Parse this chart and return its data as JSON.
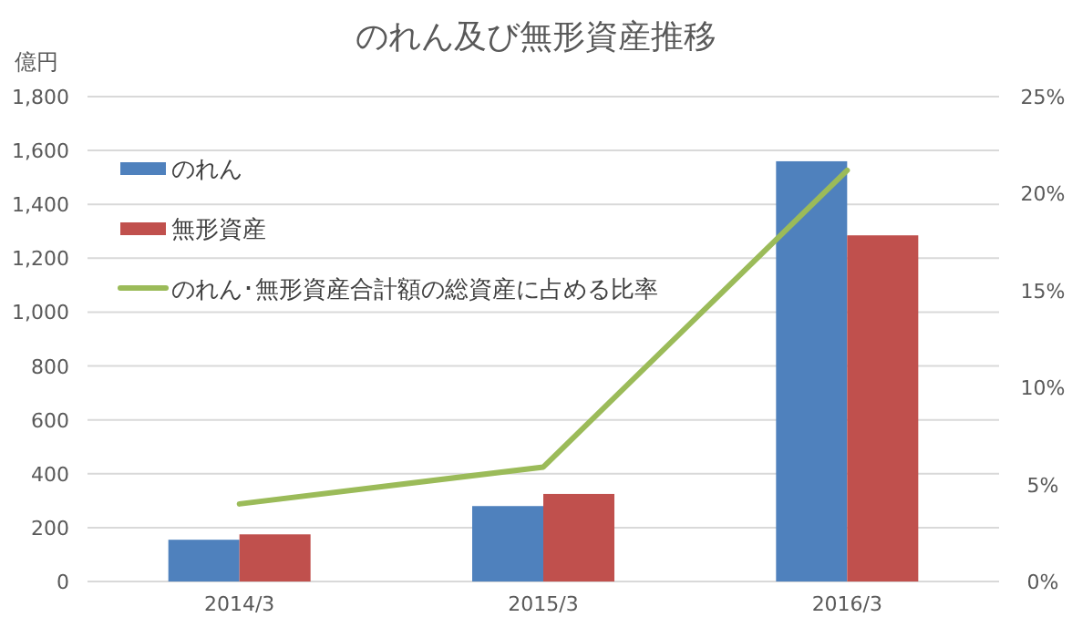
{
  "chart_data": {
    "type": "bar",
    "title": "のれん及び無形資産推移",
    "ylabel": "億円",
    "categories": [
      "2014/3",
      "2015/3",
      "2016/3"
    ],
    "series": [
      {
        "name": "のれん",
        "color": "#4f81bd",
        "values": [
          155,
          280,
          1560
        ]
      },
      {
        "name": "無形資産",
        "color": "#c0504d",
        "values": [
          175,
          325,
          1285
        ]
      },
      {
        "name": "のれん･無形資産合計額の総資産に占める比率",
        "type": "line",
        "axis": "y2",
        "color": "#9bbb59",
        "values": [
          4.0,
          5.9,
          21.2
        ]
      }
    ],
    "ylim": [
      0,
      1800
    ],
    "yticks": [
      0,
      200,
      400,
      600,
      800,
      {
        "value": 1000,
        "label": "1,000"
      },
      {
        "value": 1200,
        "label": "1,200"
      },
      {
        "value": 1400,
        "label": "1,400"
      },
      {
        "value": 1600,
        "label": "1,600"
      },
      {
        "value": 1800,
        "label": "1,800"
      }
    ],
    "y2lim": [
      0,
      25
    ],
    "y2ticks": [
      {
        "value": 0,
        "label": "0%"
      },
      {
        "value": 5,
        "label": "5%"
      },
      {
        "value": 10,
        "label": "10%"
      },
      {
        "value": 15,
        "label": "15%"
      },
      {
        "value": 20,
        "label": "20%"
      },
      {
        "value": 25,
        "label": "25%"
      }
    ],
    "grid": "y",
    "legend": "top left",
    "marker": "none",
    "line_style": "solid"
  }
}
